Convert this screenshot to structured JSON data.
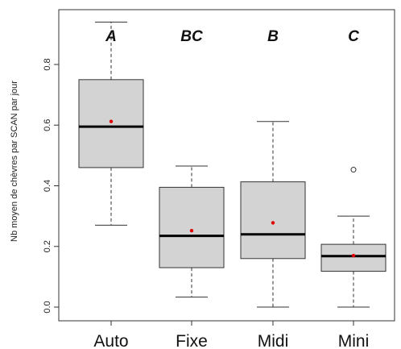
{
  "chart_data": {
    "type": "box",
    "ylabel": "Nb moyen de chèvres par SCAN par jour",
    "xlabel": "",
    "ylim": [
      0,
      0.95
    ],
    "y_ticks": [
      0.0,
      0.2,
      0.4,
      0.6,
      0.8
    ],
    "y_tick_labels": [
      "0.0",
      "0.2",
      "0.4",
      "0.6",
      "0.8"
    ],
    "grid": false,
    "colors": {
      "box_fill": "#d3d3d3",
      "box_stroke": "#333333",
      "median": "#000000",
      "mean_point": "#e00000",
      "outlier": "#333333"
    },
    "categories": [
      "Auto",
      "Fixe",
      "Midi",
      "Mini"
    ],
    "group_letters": [
      "A",
      "BC",
      "B",
      "C"
    ],
    "boxes": [
      {
        "category": "Auto",
        "whisker_low": 0.27,
        "q1": 0.46,
        "median": 0.595,
        "q3": 0.75,
        "whisker_high": 0.94,
        "mean": 0.612,
        "outliers": []
      },
      {
        "category": "Fixe",
        "whisker_low": 0.033,
        "q1": 0.13,
        "median": 0.235,
        "q3": 0.395,
        "whisker_high": 0.465,
        "mean": 0.252,
        "outliers": []
      },
      {
        "category": "Midi",
        "whisker_low": 0.0,
        "q1": 0.16,
        "median": 0.24,
        "q3": 0.413,
        "whisker_high": 0.612,
        "mean": 0.278,
        "outliers": []
      },
      {
        "category": "Mini",
        "whisker_low": 0.0,
        "q1": 0.118,
        "median": 0.168,
        "q3": 0.207,
        "whisker_high": 0.3,
        "mean": 0.17,
        "outliers": [
          0.453
        ]
      }
    ]
  }
}
